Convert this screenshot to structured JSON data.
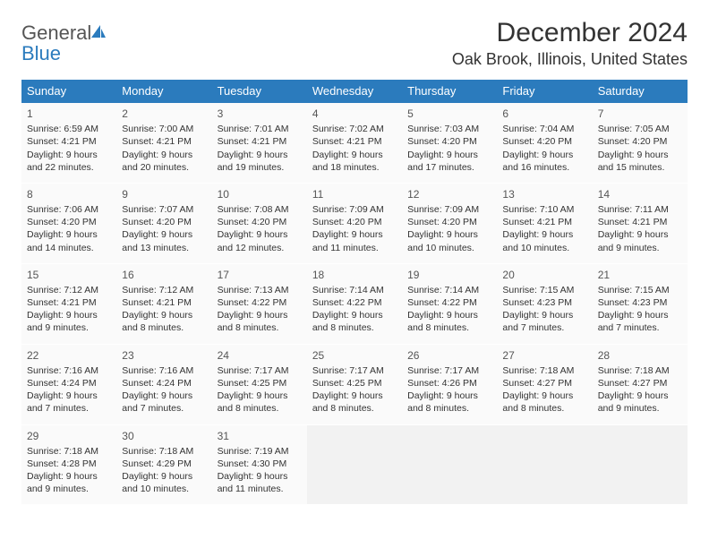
{
  "logo": {
    "text1": "General",
    "text2": "Blue"
  },
  "title": "December 2024",
  "location": "Oak Brook, Illinois, United States",
  "colors": {
    "header_bg": "#2b7bbd",
    "header_text": "#ffffff",
    "cell_bg": "#fafafa",
    "empty_bg": "#f2f2f2",
    "text": "#333333",
    "logo_gray": "#555555",
    "logo_blue": "#2b7bbd"
  },
  "day_headers": [
    "Sunday",
    "Monday",
    "Tuesday",
    "Wednesday",
    "Thursday",
    "Friday",
    "Saturday"
  ],
  "weeks": [
    [
      {
        "n": "1",
        "sr": "6:59 AM",
        "ss": "4:21 PM",
        "dl": "9 hours and 22 minutes."
      },
      {
        "n": "2",
        "sr": "7:00 AM",
        "ss": "4:21 PM",
        "dl": "9 hours and 20 minutes."
      },
      {
        "n": "3",
        "sr": "7:01 AM",
        "ss": "4:21 PM",
        "dl": "9 hours and 19 minutes."
      },
      {
        "n": "4",
        "sr": "7:02 AM",
        "ss": "4:21 PM",
        "dl": "9 hours and 18 minutes."
      },
      {
        "n": "5",
        "sr": "7:03 AM",
        "ss": "4:20 PM",
        "dl": "9 hours and 17 minutes."
      },
      {
        "n": "6",
        "sr": "7:04 AM",
        "ss": "4:20 PM",
        "dl": "9 hours and 16 minutes."
      },
      {
        "n": "7",
        "sr": "7:05 AM",
        "ss": "4:20 PM",
        "dl": "9 hours and 15 minutes."
      }
    ],
    [
      {
        "n": "8",
        "sr": "7:06 AM",
        "ss": "4:20 PM",
        "dl": "9 hours and 14 minutes."
      },
      {
        "n": "9",
        "sr": "7:07 AM",
        "ss": "4:20 PM",
        "dl": "9 hours and 13 minutes."
      },
      {
        "n": "10",
        "sr": "7:08 AM",
        "ss": "4:20 PM",
        "dl": "9 hours and 12 minutes."
      },
      {
        "n": "11",
        "sr": "7:09 AM",
        "ss": "4:20 PM",
        "dl": "9 hours and 11 minutes."
      },
      {
        "n": "12",
        "sr": "7:09 AM",
        "ss": "4:20 PM",
        "dl": "9 hours and 10 minutes."
      },
      {
        "n": "13",
        "sr": "7:10 AM",
        "ss": "4:21 PM",
        "dl": "9 hours and 10 minutes."
      },
      {
        "n": "14",
        "sr": "7:11 AM",
        "ss": "4:21 PM",
        "dl": "9 hours and 9 minutes."
      }
    ],
    [
      {
        "n": "15",
        "sr": "7:12 AM",
        "ss": "4:21 PM",
        "dl": "9 hours and 9 minutes."
      },
      {
        "n": "16",
        "sr": "7:12 AM",
        "ss": "4:21 PM",
        "dl": "9 hours and 8 minutes."
      },
      {
        "n": "17",
        "sr": "7:13 AM",
        "ss": "4:22 PM",
        "dl": "9 hours and 8 minutes."
      },
      {
        "n": "18",
        "sr": "7:14 AM",
        "ss": "4:22 PM",
        "dl": "9 hours and 8 minutes."
      },
      {
        "n": "19",
        "sr": "7:14 AM",
        "ss": "4:22 PM",
        "dl": "9 hours and 8 minutes."
      },
      {
        "n": "20",
        "sr": "7:15 AM",
        "ss": "4:23 PM",
        "dl": "9 hours and 7 minutes."
      },
      {
        "n": "21",
        "sr": "7:15 AM",
        "ss": "4:23 PM",
        "dl": "9 hours and 7 minutes."
      }
    ],
    [
      {
        "n": "22",
        "sr": "7:16 AM",
        "ss": "4:24 PM",
        "dl": "9 hours and 7 minutes."
      },
      {
        "n": "23",
        "sr": "7:16 AM",
        "ss": "4:24 PM",
        "dl": "9 hours and 7 minutes."
      },
      {
        "n": "24",
        "sr": "7:17 AM",
        "ss": "4:25 PM",
        "dl": "9 hours and 8 minutes."
      },
      {
        "n": "25",
        "sr": "7:17 AM",
        "ss": "4:25 PM",
        "dl": "9 hours and 8 minutes."
      },
      {
        "n": "26",
        "sr": "7:17 AM",
        "ss": "4:26 PM",
        "dl": "9 hours and 8 minutes."
      },
      {
        "n": "27",
        "sr": "7:18 AM",
        "ss": "4:27 PM",
        "dl": "9 hours and 8 minutes."
      },
      {
        "n": "28",
        "sr": "7:18 AM",
        "ss": "4:27 PM",
        "dl": "9 hours and 9 minutes."
      }
    ],
    [
      {
        "n": "29",
        "sr": "7:18 AM",
        "ss": "4:28 PM",
        "dl": "9 hours and 9 minutes."
      },
      {
        "n": "30",
        "sr": "7:18 AM",
        "ss": "4:29 PM",
        "dl": "9 hours and 10 minutes."
      },
      {
        "n": "31",
        "sr": "7:19 AM",
        "ss": "4:30 PM",
        "dl": "9 hours and 11 minutes."
      },
      null,
      null,
      null,
      null
    ]
  ],
  "labels": {
    "sunrise": "Sunrise:",
    "sunset": "Sunset:",
    "daylight": "Daylight:"
  }
}
